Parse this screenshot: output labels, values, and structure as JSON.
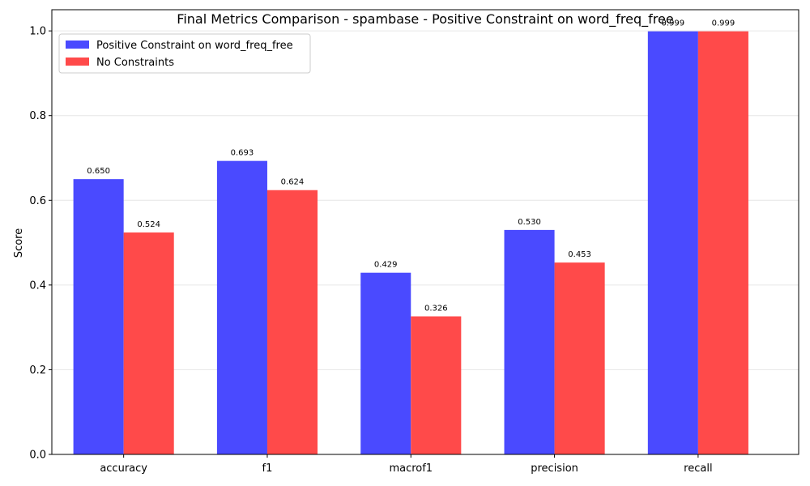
{
  "chart_data": {
    "type": "bar",
    "title": "Final Metrics Comparison - spambase - Positive Constraint on word_freq_free",
    "xlabel": "",
    "ylabel": "Score",
    "categories": [
      "accuracy",
      "f1",
      "macrof1",
      "precision",
      "recall"
    ],
    "series": [
      {
        "name": "Positive Constraint on word_freq_free",
        "color": "#4a4aff",
        "values": [
          0.65,
          0.693,
          0.429,
          0.53,
          0.999
        ],
        "labels": [
          "0.650",
          "0.693",
          "0.429",
          "0.530",
          "0.999"
        ]
      },
      {
        "name": "No Constraints",
        "color": "#ff4a4a",
        "values": [
          0.524,
          0.624,
          0.326,
          0.453,
          0.999
        ],
        "labels": [
          "0.524",
          "0.624",
          "0.326",
          "0.453",
          "0.999"
        ]
      }
    ],
    "ylim": [
      0,
      1.05
    ],
    "yticks": [
      "0.0",
      "0.2",
      "0.4",
      "0.6",
      "0.8",
      "1.0"
    ],
    "ytick_values": [
      0.0,
      0.2,
      0.4,
      0.6,
      0.8,
      1.0
    ],
    "grid": "y",
    "legend": "top-left"
  }
}
